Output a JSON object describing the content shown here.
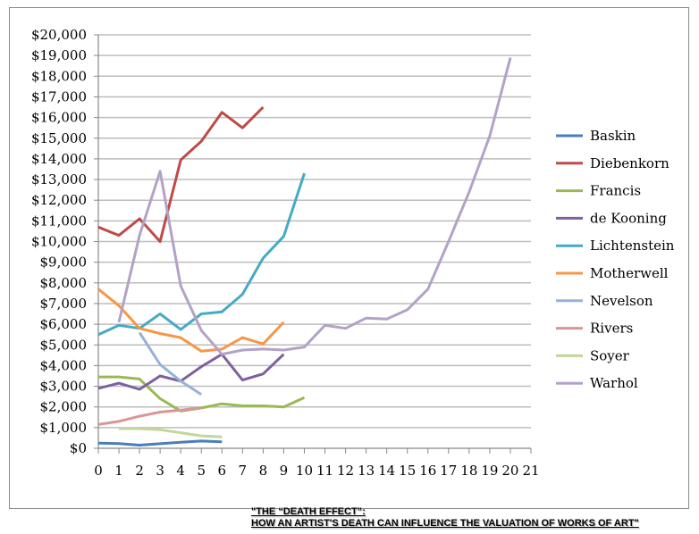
{
  "chart_data": {
    "type": "line",
    "title": "",
    "xlabel": "",
    "ylabel": "",
    "xlim": [
      0,
      21
    ],
    "ylim": [
      0,
      20000
    ],
    "grid": true,
    "legend": "right",
    "x_ticks": [
      "0",
      "1",
      "2",
      "3",
      "4",
      "5",
      "6",
      "7",
      "8",
      "9",
      "10",
      "11",
      "12",
      "13",
      "14",
      "15",
      "16",
      "17",
      "18",
      "19",
      "20",
      "21"
    ],
    "y_ticks": [
      "$0",
      "$1,000",
      "$2,000",
      "$3,000",
      "$4,000",
      "$5,000",
      "$6,000",
      "$7,000",
      "$8,000",
      "$9,000",
      "$10,000",
      "$11,000",
      "$12,000",
      "$13,000",
      "$14,000",
      "$15,000",
      "$16,000",
      "$17,000",
      "$18,000",
      "$19,000",
      "$20,000"
    ],
    "series": [
      {
        "name": "Baskin",
        "color": "#4a7ebb",
        "start": 0,
        "values": [
          250,
          230,
          150,
          220,
          290,
          350,
          310
        ]
      },
      {
        "name": "Diebenkorn",
        "color": "#be4b48",
        "start": 0,
        "values": [
          10700,
          10300,
          11100,
          10000,
          13950,
          14850,
          16250,
          15500,
          16500
        ]
      },
      {
        "name": "Francis",
        "color": "#98b954",
        "start": 0,
        "values": [
          3450,
          3450,
          3350,
          2400,
          1800,
          1950,
          2150,
          2050,
          2050,
          2000,
          2450
        ]
      },
      {
        "name": "de Kooning",
        "color": "#7d60a0",
        "start": 0,
        "values": [
          2900,
          3150,
          2850,
          3500,
          3250,
          3950,
          4550,
          3300,
          3600,
          4550
        ]
      },
      {
        "name": "Lichtenstein",
        "color": "#46aac5",
        "start": 0,
        "values": [
          5500,
          5950,
          5800,
          6500,
          5750,
          6500,
          6600,
          7450,
          9200,
          10250,
          13300
        ]
      },
      {
        "name": "Motherwell",
        "color": "#f79646",
        "start": 0,
        "values": [
          7700,
          6900,
          5800,
          5550,
          5350,
          4700,
          4800,
          5350,
          5050,
          6100
        ]
      },
      {
        "name": "Nevelson",
        "color": "#95b3d7",
        "start": 2,
        "values": [
          5600,
          4050,
          3250,
          2600
        ]
      },
      {
        "name": "Rivers",
        "color": "#d99694",
        "start": 0,
        "values": [
          1150,
          1300,
          1550,
          1750,
          1850,
          1950
        ]
      },
      {
        "name": "Soyer",
        "color": "#c3d69b",
        "start": 1,
        "values": [
          950,
          950,
          900,
          750,
          600,
          550
        ]
      },
      {
        "name": "Warhol",
        "color": "#b3a2c7",
        "start": 1,
        "values": [
          6100,
          10300,
          13400,
          7850,
          5700,
          4550,
          4750,
          4800,
          4750,
          4900,
          5950,
          5800,
          6300,
          6250,
          6700,
          7700,
          10000,
          12400,
          15100,
          18900
        ]
      }
    ]
  },
  "caption": {
    "line1": "\"THE “DEATH EFFECT”:",
    "line2": "HOW AN ARTIST'S DEATH CAN INFLUENCE THE VALUATION OF WORKS OF ART\""
  }
}
